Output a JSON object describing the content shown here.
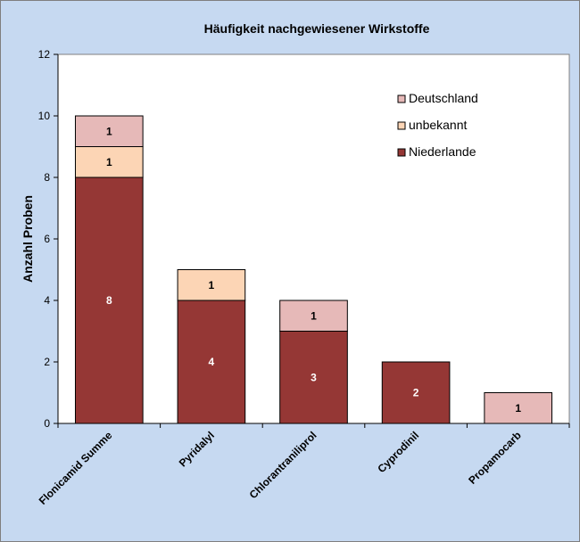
{
  "chart_data": {
    "type": "bar",
    "stacked": true,
    "title": "Häufigkeit nachgewiesener Wirkstoffe",
    "xlabel": "",
    "ylabel": "Anzahl Proben",
    "ylim": [
      0,
      12
    ],
    "yticks": [
      "0",
      "2",
      "4",
      "6",
      "8",
      "10",
      "12"
    ],
    "grid": false,
    "legend_position": "top-right",
    "categories": [
      "Flonicamid Summe",
      "Pyridalyl",
      "Chlorantraniliprol",
      "Cyprodinil",
      "Propamocarb"
    ],
    "series": [
      {
        "name": "Niederlande",
        "color": "#953735",
        "label_color": "#ffffff",
        "values": [
          8,
          4,
          3,
          2,
          0
        ]
      },
      {
        "name": "unbekannt",
        "color": "#fcd5b5",
        "label_color": "#000000",
        "values": [
          1,
          1,
          0,
          0,
          0
        ]
      },
      {
        "name": "Deutschland",
        "color": "#e6b9b8",
        "label_color": "#000000",
        "values": [
          1,
          0,
          1,
          0,
          1
        ]
      }
    ],
    "legend_order": [
      "Deutschland",
      "unbekannt",
      "Niederlande"
    ],
    "colors": {
      "background": "#c6d9f1",
      "plot_area": "#ffffff"
    }
  }
}
